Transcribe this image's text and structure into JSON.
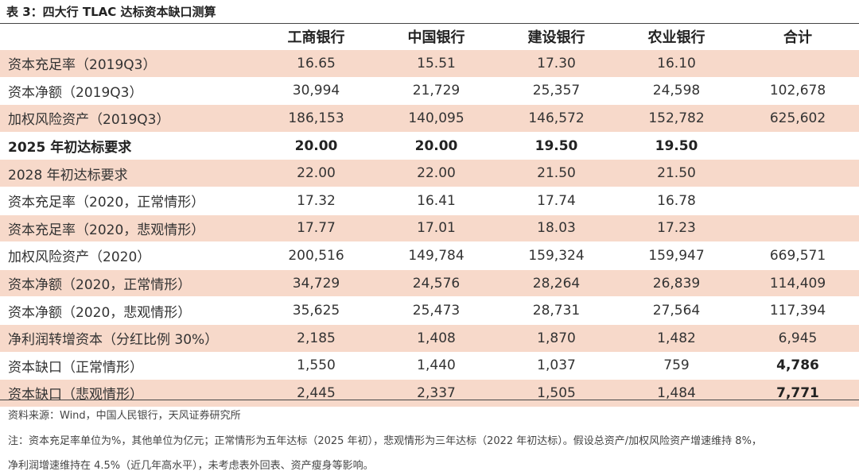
{
  "title": "表 3：四大行 TLAC 达标资本缺口测算",
  "header": [
    "",
    "工商银行",
    "中国银行",
    "建设银行",
    "农业银行",
    "合计"
  ],
  "rows": [
    {
      "cells": [
        "资本充足率（2019Q3）",
        "16.65",
        "15.51",
        "17.30",
        "16.10",
        ""
      ]
    },
    {
      "cells": [
        "资本净额（2019Q3）",
        "30,994",
        "21,729",
        "25,357",
        "24,598",
        "102,678"
      ]
    },
    {
      "cells": [
        "加权风险资产（2019Q3）",
        "186,153",
        "140,095",
        "146,572",
        "152,782",
        "625,602"
      ]
    },
    {
      "cells": [
        "2025 年初达标要求",
        "20.00",
        "20.00",
        "19.50",
        "19.50",
        ""
      ]
    },
    {
      "cells": [
        "2028 年初达标要求",
        "22.00",
        "22.00",
        "21.50",
        "21.50",
        ""
      ]
    },
    {
      "cells": [
        "资本充足率（2020，正常情形）",
        "17.32",
        "16.41",
        "17.74",
        "16.78",
        ""
      ]
    },
    {
      "cells": [
        "资本充足率（2020，悲观情形）",
        "17.77",
        "17.01",
        "18.03",
        "17.23",
        ""
      ]
    },
    {
      "cells": [
        "加权风险资产（2020）",
        "200,516",
        "149,784",
        "159,324",
        "159,947",
        "669,571"
      ]
    },
    {
      "cells": [
        "资本净额（2020，正常情形）",
        "34,729",
        "24,576",
        "28,264",
        "26,839",
        "114,409"
      ]
    },
    {
      "cells": [
        "资本净额（2020，悲观情形）",
        "35,625",
        "25,473",
        "28,731",
        "27,564",
        "117,394"
      ]
    },
    {
      "cells": [
        "净利润转增资本（分红比例 30%）",
        "2,185",
        "1,408",
        "1,870",
        "1,482",
        "6,945"
      ]
    },
    {
      "cells": [
        "资本缺口（正常情形）",
        "1,550",
        "1,440",
        "1,037",
        "759",
        "4,786"
      ]
    },
    {
      "cells": [
        "资本缺口（悲观情形）",
        "2,445",
        "2,337",
        "1,505",
        "1,484",
        "7,771"
      ]
    }
  ],
  "source": "资料来源：Wind，中国人民银行，天风证券研究所",
  "note_line1": "注：资本充足率单位为%，其他单位为亿元；正常情形为五年达标（2025 年初），悲观情形为三年达标（2022 年初达标）。假设总资产/加权风险资产增速维持 8%，",
  "note_line2": "净利润增速维持在 4.5%（近几年高水平），未考虑表外回表、资产瘦身等影响。",
  "colors": {
    "band": "#f7d9ca",
    "rule": "#444444"
  }
}
